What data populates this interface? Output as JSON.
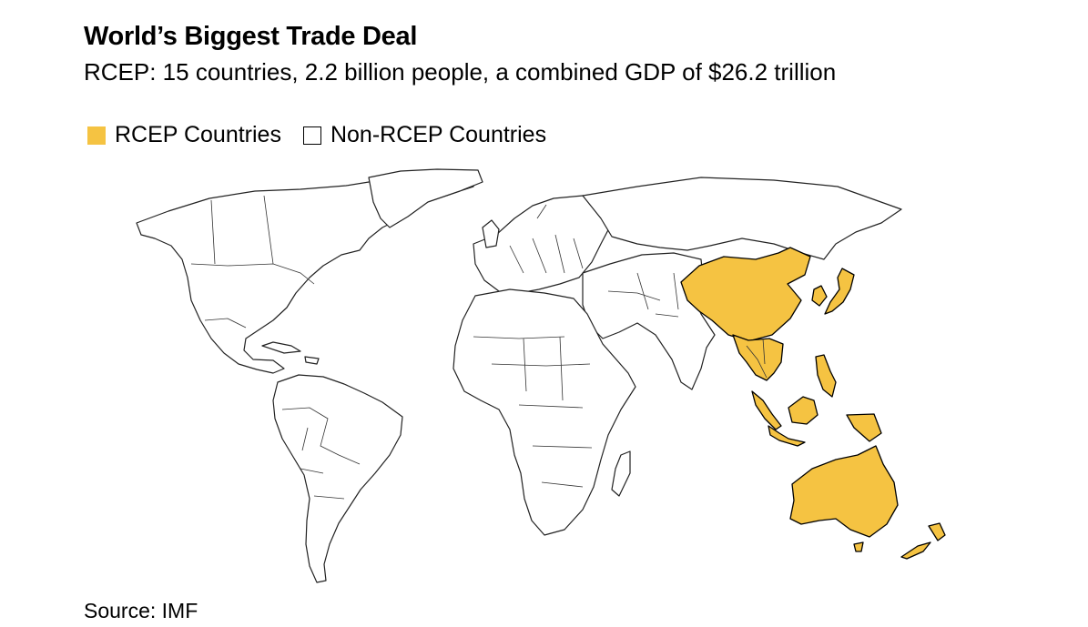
{
  "header": {
    "title": "World’s Biggest Trade Deal",
    "subtitle": "RCEP: 15 countries, 2.2 billion people, a combined GDP of $26.2 trillion"
  },
  "legend": {
    "items": [
      {
        "label": "RCEP Countries",
        "color": "#F5C342"
      },
      {
        "label": "Non-RCEP Countries",
        "color": "#FFFFFF"
      }
    ]
  },
  "map": {
    "highlight_color": "#F5C342",
    "rcep_regions": [
      "China",
      "Japan",
      "South Korea",
      "Myanmar",
      "Thailand",
      "Laos",
      "Vietnam",
      "Cambodia",
      "Malaysia",
      "Singapore",
      "Indonesia",
      "Philippines",
      "Brunei",
      "Australia",
      "New Zealand"
    ]
  },
  "footer": {
    "source": "Source: IMF"
  }
}
